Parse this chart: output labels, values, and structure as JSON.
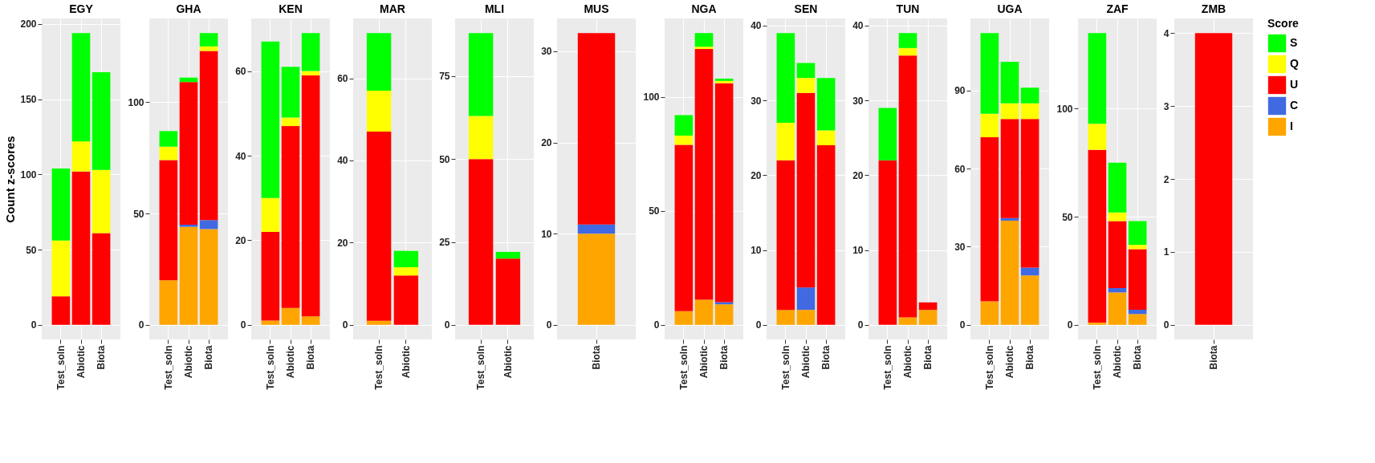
{
  "chart_data": [
    {
      "type": "bar",
      "stacked": true,
      "title": "EGY",
      "ylabel": "Count z-scores",
      "categories": [
        "Test_soln",
        "Abiotic",
        "Biota"
      ],
      "ylim": [
        -9.7,
        203.7
      ],
      "yticks": [
        0,
        50,
        100,
        150,
        200
      ],
      "grid": true,
      "legend": false,
      "series": [
        {
          "color": "#ffa500",
          "values": [
            null,
            null,
            null
          ]
        },
        {
          "color": "#4169e1",
          "values": [
            null,
            null,
            null
          ]
        },
        {
          "color": "#ff0000",
          "values": [
            19,
            102,
            61
          ]
        },
        {
          "color": "#ffff00",
          "values": [
            37,
            20,
            42
          ]
        },
        {
          "color": "#00ff00",
          "values": [
            48,
            72,
            65
          ]
        }
      ]
    },
    {
      "type": "bar",
      "stacked": true,
      "title": "GHA",
      "categories": [
        "Test_soln",
        "Abiotic",
        "Biota"
      ],
      "ylim": [
        -6.55,
        137.55
      ],
      "yticks": [
        0,
        50,
        100
      ],
      "grid": true,
      "legend": false,
      "series": [
        {
          "color": "#ffa500",
          "values": [
            20,
            44,
            43
          ]
        },
        {
          "color": "#4169e1",
          "values": [
            null,
            1,
            4
          ]
        },
        {
          "color": "#ff0000",
          "values": [
            54,
            64,
            76
          ]
        },
        {
          "color": "#ffff00",
          "values": [
            6,
            null,
            2
          ]
        },
        {
          "color": "#00ff00",
          "values": [
            7,
            2,
            6
          ]
        }
      ]
    },
    {
      "type": "bar",
      "stacked": true,
      "title": "KEN",
      "categories": [
        "Test_soln",
        "Abiotic",
        "Biota"
      ],
      "ylim": [
        -3.45,
        72.45
      ],
      "yticks": [
        0,
        20,
        40,
        60
      ],
      "grid": true,
      "legend": false,
      "series": [
        {
          "color": "#ffa500",
          "values": [
            1,
            4,
            2
          ]
        },
        {
          "color": "#4169e1",
          "values": [
            null,
            null,
            null
          ]
        },
        {
          "color": "#ff0000",
          "values": [
            21,
            43,
            57
          ]
        },
        {
          "color": "#ffff00",
          "values": [
            8,
            2,
            1
          ]
        },
        {
          "color": "#00ff00",
          "values": [
            37,
            12,
            9
          ]
        }
      ]
    },
    {
      "type": "bar",
      "stacked": true,
      "title": "MAR",
      "categories": [
        "Test_soln",
        "Abiotic"
      ],
      "ylim": [
        -3.55,
        74.55
      ],
      "yticks": [
        0,
        20,
        40,
        60
      ],
      "grid": true,
      "legend": false,
      "series": [
        {
          "color": "#ffa500",
          "values": [
            1,
            null
          ]
        },
        {
          "color": "#4169e1",
          "values": [
            null,
            null
          ]
        },
        {
          "color": "#ff0000",
          "values": [
            46,
            12
          ]
        },
        {
          "color": "#ffff00",
          "values": [
            10,
            2
          ]
        },
        {
          "color": "#00ff00",
          "values": [
            14,
            4
          ]
        }
      ]
    },
    {
      "type": "bar",
      "stacked": true,
      "title": "MLI",
      "categories": [
        "Test_soln",
        "Abiotic"
      ],
      "ylim": [
        -4.4,
        92.4
      ],
      "yticks": [
        0,
        25,
        50,
        75
      ],
      "grid": true,
      "legend": false,
      "series": [
        {
          "color": "#ffa500",
          "values": [
            null,
            null
          ]
        },
        {
          "color": "#4169e1",
          "values": [
            null,
            null
          ]
        },
        {
          "color": "#ff0000",
          "values": [
            50,
            20
          ]
        },
        {
          "color": "#ffff00",
          "values": [
            13,
            null
          ]
        },
        {
          "color": "#00ff00",
          "values": [
            25,
            2
          ]
        }
      ]
    },
    {
      "type": "bar",
      "stacked": true,
      "title": "MUS",
      "categories": [
        "Biota"
      ],
      "ylim": [
        -1.6,
        33.6
      ],
      "yticks": [
        0,
        10,
        20,
        30
      ],
      "grid": true,
      "legend": false,
      "series": [
        {
          "color": "#ffa500",
          "values": [
            10
          ]
        },
        {
          "color": "#4169e1",
          "values": [
            1
          ]
        },
        {
          "color": "#ff0000",
          "values": [
            21
          ]
        },
        {
          "color": "#ffff00",
          "values": [
            null
          ]
        },
        {
          "color": "#00ff00",
          "values": [
            null
          ]
        }
      ]
    },
    {
      "type": "bar",
      "stacked": true,
      "title": "NGA",
      "categories": [
        "Test_soln",
        "Abiotic",
        "Biota"
      ],
      "ylim": [
        -6.4,
        134.4
      ],
      "yticks": [
        0,
        50,
        100
      ],
      "grid": true,
      "legend": false,
      "series": [
        {
          "color": "#ffa500",
          "values": [
            6,
            11,
            9
          ]
        },
        {
          "color": "#4169e1",
          "values": [
            null,
            null,
            1
          ]
        },
        {
          "color": "#ff0000",
          "values": [
            73,
            110,
            96
          ]
        },
        {
          "color": "#ffff00",
          "values": [
            4,
            1,
            1
          ]
        },
        {
          "color": "#00ff00",
          "values": [
            9,
            6,
            1
          ]
        }
      ]
    },
    {
      "type": "bar",
      "stacked": true,
      "title": "SEN",
      "categories": [
        "Test_soln",
        "Abiotic",
        "Biota"
      ],
      "ylim": [
        -1.95,
        40.95
      ],
      "yticks": [
        0,
        10,
        20,
        30,
        40
      ],
      "grid": true,
      "legend": false,
      "series": [
        {
          "color": "#ffa500",
          "values": [
            2,
            2,
            null
          ]
        },
        {
          "color": "#4169e1",
          "values": [
            null,
            3,
            null
          ]
        },
        {
          "color": "#ff0000",
          "values": [
            20,
            26,
            24
          ]
        },
        {
          "color": "#ffff00",
          "values": [
            5,
            2,
            2
          ]
        },
        {
          "color": "#00ff00",
          "values": [
            12,
            2,
            7
          ]
        }
      ]
    },
    {
      "type": "bar",
      "stacked": true,
      "title": "TUN",
      "categories": [
        "Test_soln",
        "Abiotic",
        "Biota"
      ],
      "ylim": [
        -1.95,
        40.95
      ],
      "yticks": [
        0,
        10,
        20,
        30,
        40
      ],
      "grid": true,
      "legend": false,
      "series": [
        {
          "color": "#ffa500",
          "values": [
            null,
            1,
            2
          ]
        },
        {
          "color": "#4169e1",
          "values": [
            null,
            null,
            null
          ]
        },
        {
          "color": "#ff0000",
          "values": [
            22,
            35,
            1
          ]
        },
        {
          "color": "#ffff00",
          "values": [
            null,
            1,
            null
          ]
        },
        {
          "color": "#00ff00",
          "values": [
            7,
            2,
            null
          ]
        }
      ]
    },
    {
      "type": "bar",
      "stacked": true,
      "title": "UGA",
      "categories": [
        "Test_soln",
        "Abiotic",
        "Biota"
      ],
      "ylim": [
        -5.6,
        117.6
      ],
      "yticks": [
        0,
        30,
        60,
        90
      ],
      "grid": true,
      "legend": false,
      "series": [
        {
          "color": "#ffa500",
          "values": [
            9,
            40,
            19
          ]
        },
        {
          "color": "#4169e1",
          "values": [
            null,
            1,
            3
          ]
        },
        {
          "color": "#ff0000",
          "values": [
            63,
            38,
            57
          ]
        },
        {
          "color": "#ffff00",
          "values": [
            9,
            6,
            6
          ]
        },
        {
          "color": "#00ff00",
          "values": [
            31,
            16,
            6
          ]
        }
      ]
    },
    {
      "type": "bar",
      "stacked": true,
      "title": "ZAF",
      "categories": [
        "Test_soln",
        "Abiotic",
        "Biota"
      ],
      "ylim": [
        -6.75,
        141.75
      ],
      "yticks": [
        0,
        50,
        100
      ],
      "grid": true,
      "legend": false,
      "series": [
        {
          "color": "#ffa500",
          "values": [
            1,
            15,
            5
          ]
        },
        {
          "color": "#4169e1",
          "values": [
            null,
            2,
            2
          ]
        },
        {
          "color": "#ff0000",
          "values": [
            80,
            31,
            28
          ]
        },
        {
          "color": "#ffff00",
          "values": [
            12,
            4,
            2
          ]
        },
        {
          "color": "#00ff00",
          "values": [
            42,
            23,
            11
          ]
        }
      ]
    },
    {
      "type": "bar",
      "stacked": true,
      "title": "ZMB",
      "categories": [
        "Biota"
      ],
      "ylim": [
        -0.2,
        4.2
      ],
      "yticks": [
        0,
        1,
        2,
        3,
        4
      ],
      "grid": true,
      "legend": "right",
      "legend_title": "Score",
      "series": [
        {
          "name": "I",
          "color": "#ffa500",
          "values": [
            null
          ]
        },
        {
          "name": "C",
          "color": "#4169e1",
          "values": [
            null
          ]
        },
        {
          "name": "U",
          "color": "#ff0000",
          "values": [
            4
          ]
        },
        {
          "name": "Q",
          "color": "#ffff00",
          "values": [
            null
          ]
        },
        {
          "name": "S",
          "color": "#00ff00",
          "values": [
            null
          ]
        }
      ]
    }
  ]
}
